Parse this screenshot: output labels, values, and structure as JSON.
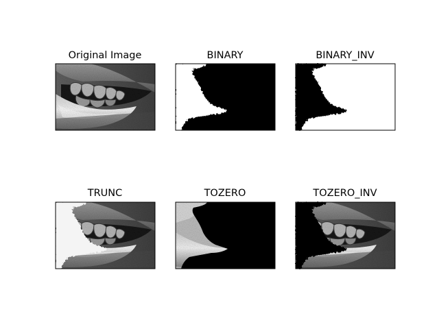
{
  "figure": {
    "background": "#ffffff",
    "panels": [
      {
        "title": "Original Image",
        "style": "original"
      },
      {
        "title": "BINARY",
        "style": "binary"
      },
      {
        "title": "BINARY_INV",
        "style": "binary-inv"
      },
      {
        "title": "TRUNC",
        "style": "trunc"
      },
      {
        "title": "TOZERO",
        "style": "tozero"
      },
      {
        "title": "TOZERO_INV",
        "style": "tozero-inv"
      }
    ]
  }
}
